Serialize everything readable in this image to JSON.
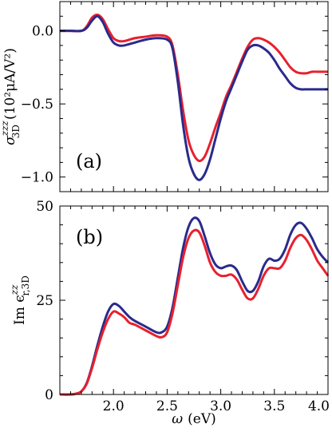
{
  "chart_data": [
    {
      "panel": "(a)",
      "type": "line",
      "ylabel_main": "σ",
      "ylabel_sup": "zzz",
      "ylabel_sub": "3D",
      "ylabel_units": "(10²μA/V²)",
      "xlim": [
        1.5,
        4.0
      ],
      "ylim": [
        -1.1,
        0.2
      ],
      "yticks": [
        0.0,
        -0.5,
        -1.0
      ],
      "ytick_labels": [
        "0.0",
        "−0.5",
        "−1.0"
      ],
      "series": [
        {
          "color": "#e8202e",
          "x": [
            1.5,
            1.6,
            1.7,
            1.75,
            1.8,
            1.85,
            1.9,
            1.95,
            2.0,
            2.05,
            2.1,
            2.2,
            2.3,
            2.4,
            2.5,
            2.55,
            2.6,
            2.65,
            2.7,
            2.75,
            2.8,
            2.85,
            2.9,
            2.95,
            3.0,
            3.05,
            3.1,
            3.15,
            3.2,
            3.25,
            3.3,
            3.35,
            3.4,
            3.45,
            3.5,
            3.55,
            3.6,
            3.65,
            3.7,
            3.75,
            3.8,
            3.85,
            3.9,
            3.95,
            4.0
          ],
          "y": [
            0.0,
            0.0,
            0.0,
            0.03,
            0.09,
            0.11,
            0.08,
            0.01,
            -0.05,
            -0.07,
            -0.07,
            -0.05,
            -0.04,
            -0.03,
            -0.04,
            -0.1,
            -0.3,
            -0.55,
            -0.75,
            -0.85,
            -0.89,
            -0.86,
            -0.77,
            -0.66,
            -0.56,
            -0.45,
            -0.37,
            -0.28,
            -0.19,
            -0.11,
            -0.06,
            -0.05,
            -0.06,
            -0.08,
            -0.11,
            -0.15,
            -0.2,
            -0.25,
            -0.28,
            -0.29,
            -0.29,
            -0.28,
            -0.28,
            -0.28,
            -0.28
          ]
        },
        {
          "color": "#2a2a8c",
          "x": [
            1.5,
            1.6,
            1.7,
            1.75,
            1.8,
            1.85,
            1.9,
            1.95,
            2.0,
            2.05,
            2.1,
            2.2,
            2.3,
            2.4,
            2.5,
            2.55,
            2.6,
            2.65,
            2.7,
            2.75,
            2.8,
            2.85,
            2.9,
            2.95,
            3.0,
            3.05,
            3.1,
            3.15,
            3.2,
            3.25,
            3.3,
            3.35,
            3.4,
            3.45,
            3.5,
            3.55,
            3.6,
            3.65,
            3.7,
            3.75,
            3.8,
            3.85,
            3.9,
            3.95,
            4.0
          ],
          "y": [
            0.0,
            0.0,
            0.0,
            0.02,
            0.07,
            0.1,
            0.06,
            -0.02,
            -0.08,
            -0.1,
            -0.1,
            -0.08,
            -0.06,
            -0.05,
            -0.06,
            -0.12,
            -0.35,
            -0.65,
            -0.87,
            -0.98,
            -1.02,
            -0.98,
            -0.88,
            -0.74,
            -0.6,
            -0.48,
            -0.39,
            -0.3,
            -0.21,
            -0.13,
            -0.1,
            -0.1,
            -0.12,
            -0.15,
            -0.2,
            -0.26,
            -0.31,
            -0.36,
            -0.39,
            -0.4,
            -0.4,
            -0.4,
            -0.4,
            -0.4,
            -0.4
          ]
        }
      ],
      "grid": false
    },
    {
      "panel": "(b)",
      "type": "line",
      "ylabel_main": "Im ϵ",
      "ylabel_sup": "zz",
      "ylabel_sub": "r,3D",
      "xlabel_main": "ω",
      "xlabel_units": "(eV)",
      "xlim": [
        1.5,
        4.0
      ],
      "ylim": [
        0,
        50
      ],
      "xticks": [
        2.0,
        2.5,
        3.0,
        3.5,
        4.0
      ],
      "xtick_labels": [
        "2.0",
        "2.5",
        "3.0",
        "3.5",
        "4.0"
      ],
      "yticks": [
        0,
        25,
        50
      ],
      "ytick_labels": [
        "0",
        "25",
        "50"
      ],
      "series": [
        {
          "color": "#2a2a8c",
          "x": [
            1.5,
            1.6,
            1.65,
            1.7,
            1.75,
            1.8,
            1.85,
            1.9,
            1.95,
            2.0,
            2.05,
            2.1,
            2.15,
            2.2,
            2.3,
            2.4,
            2.45,
            2.5,
            2.55,
            2.6,
            2.65,
            2.7,
            2.75,
            2.8,
            2.85,
            2.9,
            2.95,
            3.0,
            3.05,
            3.1,
            3.15,
            3.2,
            3.25,
            3.3,
            3.35,
            3.4,
            3.45,
            3.5,
            3.55,
            3.6,
            3.65,
            3.7,
            3.75,
            3.8,
            3.85,
            3.9,
            3.95,
            4.0
          ],
          "y": [
            0.0,
            0.0,
            0.2,
            0.8,
            3.0,
            7.5,
            13.0,
            18.0,
            22.0,
            24.0,
            23.5,
            22.0,
            20.5,
            19.5,
            18.0,
            16.5,
            16.5,
            18.0,
            23.0,
            31.0,
            39.0,
            44.5,
            46.8,
            46.0,
            42.0,
            37.5,
            34.5,
            33.5,
            34.0,
            34.2,
            33.0,
            30.0,
            27.5,
            27.5,
            30.0,
            34.0,
            36.0,
            35.5,
            36.0,
            38.5,
            42.5,
            45.0,
            45.5,
            44.0,
            41.5,
            38.5,
            36.5,
            35.0
          ]
        },
        {
          "color": "#e8202e",
          "x": [
            1.5,
            1.6,
            1.65,
            1.7,
            1.75,
            1.8,
            1.85,
            1.9,
            1.95,
            2.0,
            2.05,
            2.1,
            2.15,
            2.2,
            2.3,
            2.4,
            2.45,
            2.5,
            2.55,
            2.6,
            2.65,
            2.7,
            2.75,
            2.8,
            2.85,
            2.9,
            2.95,
            3.0,
            3.05,
            3.1,
            3.15,
            3.2,
            3.25,
            3.3,
            3.35,
            3.4,
            3.45,
            3.5,
            3.55,
            3.6,
            3.65,
            3.7,
            3.75,
            3.8,
            3.85,
            3.9,
            3.95,
            4.0
          ],
          "y": [
            0.0,
            0.0,
            0.2,
            0.8,
            2.8,
            7.0,
            12.0,
            16.5,
            20.0,
            22.0,
            21.5,
            20.5,
            19.0,
            18.5,
            17.0,
            15.5,
            15.2,
            16.5,
            21.5,
            29.0,
            36.5,
            41.5,
            43.5,
            43.0,
            39.5,
            35.0,
            32.5,
            31.5,
            31.5,
            31.8,
            30.5,
            27.8,
            25.5,
            25.5,
            28.0,
            31.5,
            33.5,
            33.5,
            33.5,
            35.5,
            39.0,
            41.5,
            42.3,
            41.0,
            38.5,
            35.5,
            33.5,
            31.5
          ]
        }
      ],
      "grid": false
    }
  ]
}
